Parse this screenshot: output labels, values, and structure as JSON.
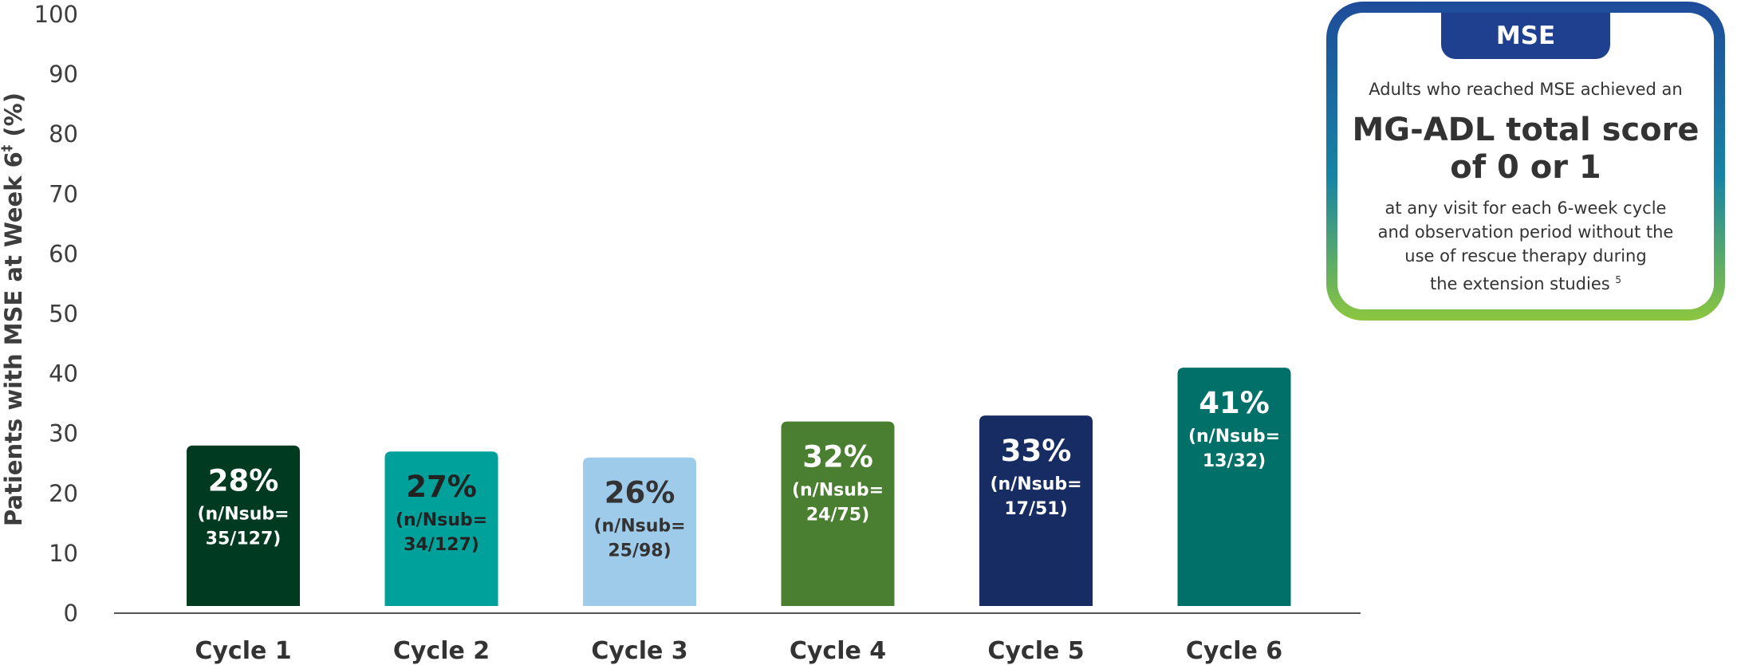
{
  "chart_data": {
    "type": "bar",
    "ylabel": "Patients with MSE at Week 6",
    "ylabel_superscript": "‡",
    "ylabel_unit": "(%)",
    "ylim": [
      0,
      100
    ],
    "yticks": [
      "0",
      "10",
      "20",
      "30",
      "40",
      "50",
      "60",
      "70",
      "80",
      "90",
      "100"
    ],
    "categories": [
      "Cycle 1",
      "Cycle 2",
      "Cycle 3",
      "Cycle 4",
      "Cycle 5",
      "Cycle 6"
    ],
    "values": [
      28,
      27,
      26,
      32,
      33,
      41
    ],
    "bar_labels": [
      "28%",
      "27%",
      "26%",
      "32%",
      "33%",
      "41%"
    ],
    "bar_sublabels_line1": [
      "(n/Nsub=",
      "(n/Nsub=",
      "(n/Nsub=",
      "(n/Nsub=",
      "(n/Nsub=",
      "(n/Nsub="
    ],
    "bar_sublabels_line2": [
      "35/127)",
      "34/127)",
      "25/98)",
      "24/75)",
      "17/51)",
      "13/32)"
    ],
    "bar_colors": [
      "#003a20",
      "#00a19a",
      "#9ecbea",
      "#4a7f31",
      "#172c62",
      "#007068"
    ],
    "label_colors": [
      "#ffffff",
      "#222222",
      "#333333",
      "#ffffff",
      "#ffffff",
      "#ffffff"
    ],
    "grid": false
  },
  "callout": {
    "tag": "MSE",
    "intro": "Adults who reached MSE achieved an",
    "headline_line1": "MG-ADL total score",
    "headline_line2": "of 0 or 1",
    "body_line1": "at any visit for each 6-week cycle",
    "body_line2": "and observation period without the",
    "body_line3": "use of rescue therapy during",
    "body_line4": "the extension studies",
    "body_ref": "5"
  }
}
